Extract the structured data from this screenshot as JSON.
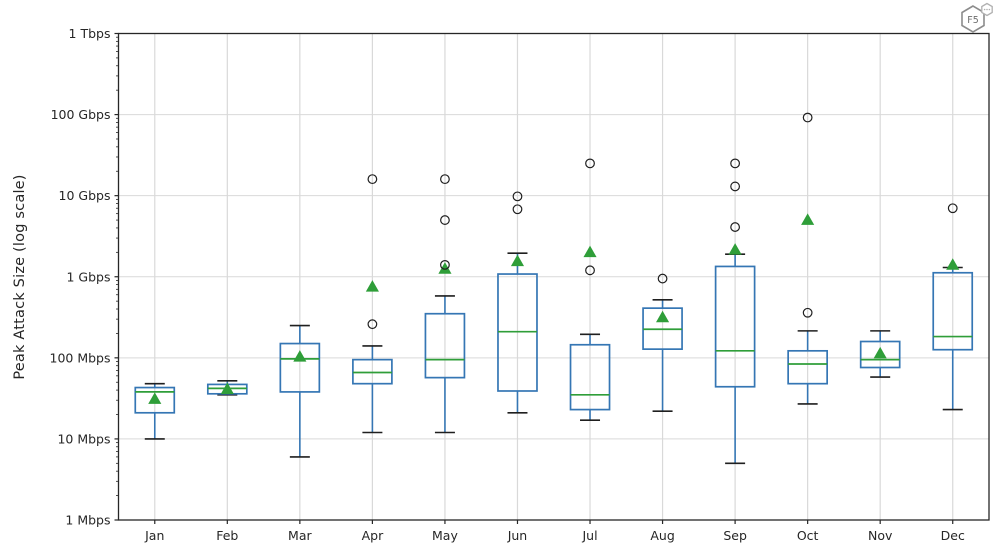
{
  "logo": {
    "label": "F5"
  },
  "chart_data": {
    "type": "boxplot",
    "title": "",
    "xlabel": "",
    "ylabel": "Peak Attack Size (log scale)",
    "yscale": "log",
    "unit": "Mbps",
    "ylim_mbps": [
      1,
      1000000
    ],
    "yticks": [
      {
        "value": 1,
        "label": "1 Mbps"
      },
      {
        "value": 10,
        "label": "10 Mbps"
      },
      {
        "value": 100,
        "label": "100 Mbps"
      },
      {
        "value": 1000,
        "label": "1 Gbps"
      },
      {
        "value": 10000,
        "label": "10 Gbps"
      },
      {
        "value": 100000,
        "label": "100 Gbps"
      },
      {
        "value": 1000000,
        "label": "1 Tbps"
      }
    ],
    "grid": {
      "horizontal": true,
      "vertical": true,
      "minor_log_ticks": true
    },
    "legend": null,
    "categories": [
      "Jan",
      "Feb",
      "Mar",
      "Apr",
      "May",
      "Jun",
      "Jul",
      "Aug",
      "Sep",
      "Oct",
      "Nov",
      "Dec"
    ],
    "series": [
      {
        "label": "Jan",
        "whisker_low": 10,
        "q1": 21,
        "median": 38,
        "q3": 43,
        "whisker_high": 48,
        "mean": 31,
        "outliers": []
      },
      {
        "label": "Feb",
        "whisker_low": 35,
        "q1": 36,
        "median": 42,
        "q3": 47,
        "whisker_high": 52,
        "mean": 41,
        "outliers": []
      },
      {
        "label": "Mar",
        "whisker_low": 6,
        "q1": 38,
        "median": 97,
        "q3": 150,
        "whisker_high": 250,
        "mean": 103,
        "outliers": []
      },
      {
        "label": "Apr",
        "whisker_low": 12,
        "q1": 48,
        "median": 66,
        "q3": 95,
        "whisker_high": 140,
        "mean": 750,
        "outliers": [
          260,
          16000
        ]
      },
      {
        "label": "May",
        "whisker_low": 12,
        "q1": 57,
        "median": 95,
        "q3": 350,
        "whisker_high": 580,
        "mean": 1250,
        "outliers": [
          1400,
          5000,
          16000
        ]
      },
      {
        "label": "Jun",
        "whisker_low": 21,
        "q1": 39,
        "median": 210,
        "q3": 1080,
        "whisker_high": 1950,
        "mean": 1550,
        "outliers": [
          6800,
          9800
        ]
      },
      {
        "label": "Jul",
        "whisker_low": 17,
        "q1": 23,
        "median": 35,
        "q3": 145,
        "whisker_high": 195,
        "mean": 2000,
        "outliers": [
          1200,
          25000
        ]
      },
      {
        "label": "Aug",
        "whisker_low": 22,
        "q1": 128,
        "median": 225,
        "q3": 410,
        "whisker_high": 520,
        "mean": 315,
        "outliers": [
          950
        ]
      },
      {
        "label": "Sep",
        "whisker_low": 5,
        "q1": 44,
        "median": 122,
        "q3": 1340,
        "whisker_high": 1900,
        "mean": 2150,
        "outliers": [
          4100,
          13000,
          25000
        ]
      },
      {
        "label": "Oct",
        "whisker_low": 27,
        "q1": 48,
        "median": 84,
        "q3": 122,
        "whisker_high": 215,
        "mean": 5000,
        "outliers": [
          360,
          92000
        ]
      },
      {
        "label": "Nov",
        "whisker_low": 58,
        "q1": 76,
        "median": 95,
        "q3": 159,
        "whisker_high": 215,
        "mean": 113,
        "outliers": []
      },
      {
        "label": "Dec",
        "whisker_low": 23,
        "q1": 126,
        "median": 183,
        "q3": 1120,
        "whisker_high": 1300,
        "mean": 1400,
        "outliers": [
          7000
        ]
      }
    ],
    "colors": {
      "box_edge": "#3576b4",
      "whisker": "#3576b4",
      "cap": "#1f1f1f",
      "median": "#2f9e39",
      "mean_marker": "#2f9e39",
      "outlier_edge": "#1f1f1f",
      "grid": "#d9d9d9",
      "spine": "#262626",
      "tick_text": "#262626",
      "background": "#ffffff"
    }
  }
}
